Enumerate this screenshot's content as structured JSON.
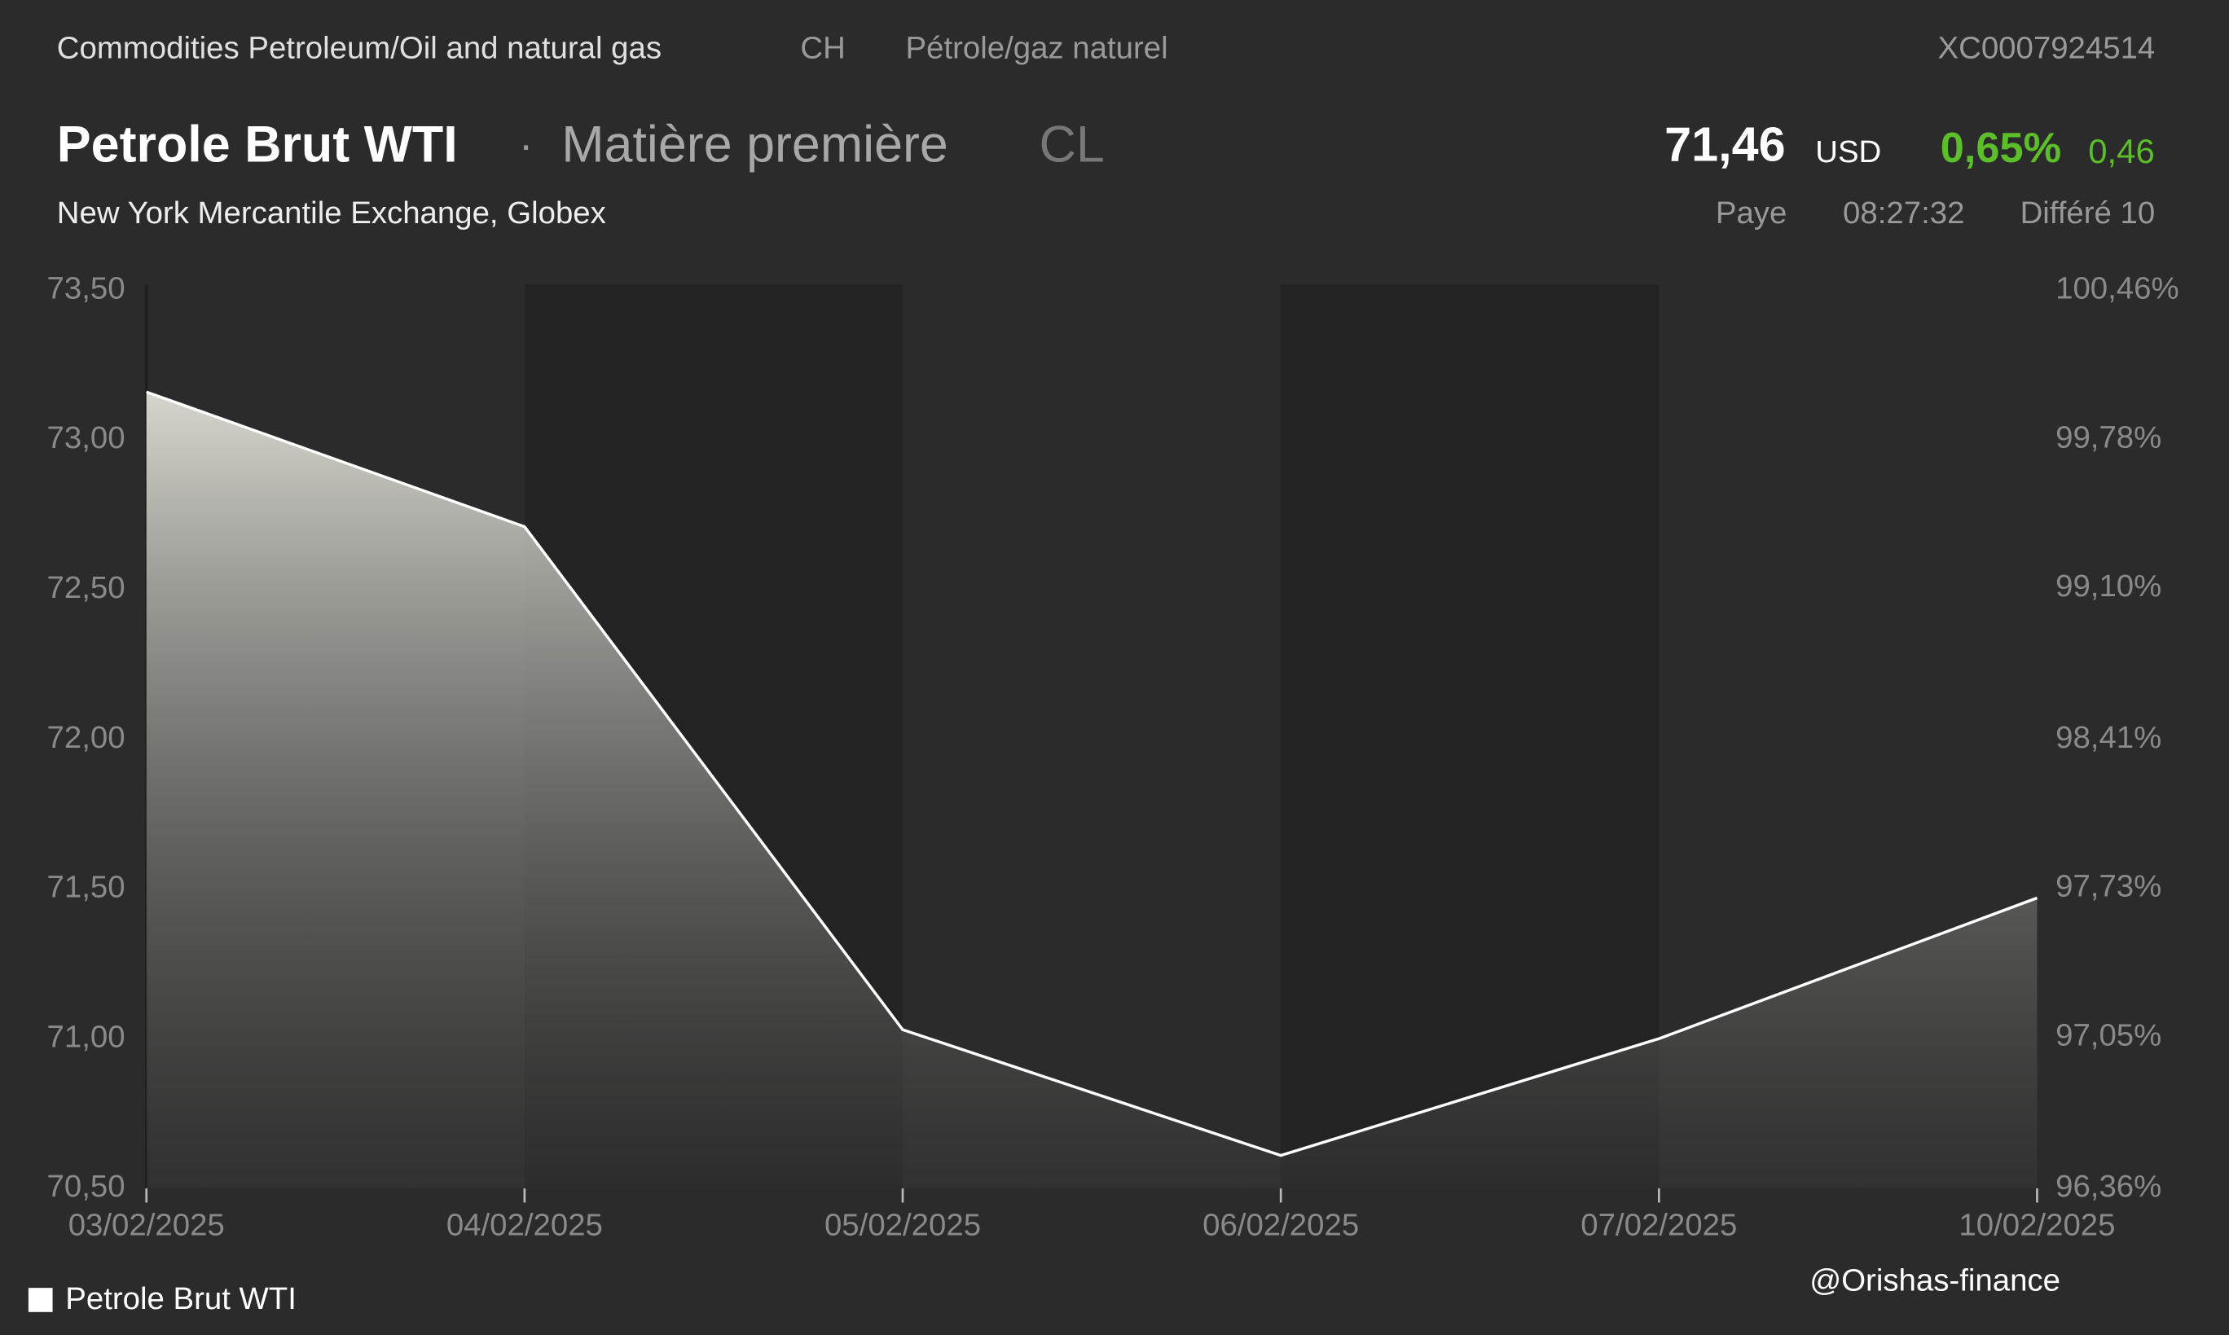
{
  "header": {
    "category": "Commodities Petroleum/Oil and natural gas",
    "country": "CH",
    "subcategory": "Pétrole/gaz naturel",
    "isin": "XC0007924514",
    "name": "Petrole Brut WTI",
    "separator": "·",
    "asset_type": "Matière première",
    "symbol": "CL",
    "price": "71,46",
    "currency": "USD",
    "change_pct": "0,65%",
    "change": "0,46",
    "exchange": "New York Mercantile Exchange, Globex",
    "status": "Paye",
    "time": "08:27:32",
    "delay": "Différé 10"
  },
  "chart_data": {
    "type": "area",
    "categories": [
      "03/02/2025",
      "04/02/2025",
      "05/02/2025",
      "06/02/2025",
      "07/02/2025",
      "10/02/2025"
    ],
    "series": [
      {
        "name": "Petrole Brut WTI",
        "color": "#ffffff",
        "values": [
          73.16,
          72.71,
          71.03,
          70.61,
          71.0,
          71.47
        ]
      }
    ],
    "ylim": [
      70.5,
      73.5
    ],
    "yticks": [
      {
        "value": 70.5,
        "label": "70,50"
      },
      {
        "value": 71,
        "label": "71,00"
      },
      {
        "value": 71.5,
        "label": "71,50"
      },
      {
        "value": 72,
        "label": "72,00"
      },
      {
        "value": 72.5,
        "label": "72,50"
      },
      {
        "value": 73,
        "label": "73,00"
      },
      {
        "value": 73.5,
        "label": "73,50"
      }
    ],
    "y2lim": [
      96.36,
      100.46
    ],
    "y2ticks": [
      {
        "value": 96.36,
        "label": "96,36%"
      },
      {
        "value": 97.05,
        "label": "97,05%"
      },
      {
        "value": 97.73,
        "label": "97,73%"
      },
      {
        "value": 98.41,
        "label": "98,41%"
      },
      {
        "value": 99.1,
        "label": "99,10%"
      },
      {
        "value": 99.78,
        "label": "99,78%"
      },
      {
        "value": 100.46,
        "label": "100,46%"
      }
    ],
    "legend": "bottom-left"
  },
  "watermark": "@Orishas-finance"
}
